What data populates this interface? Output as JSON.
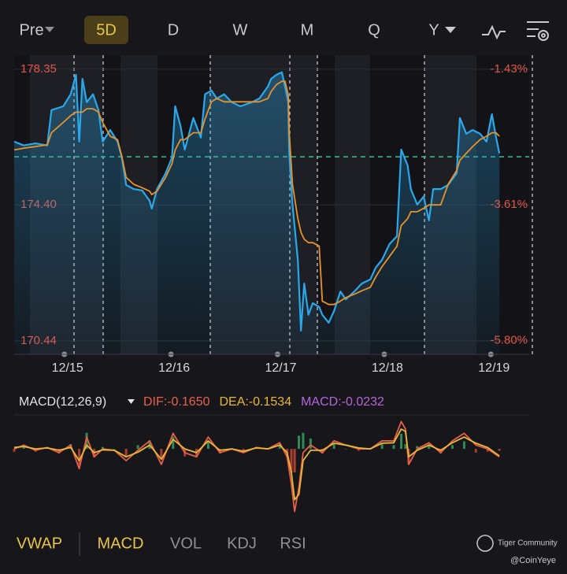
{
  "toolbar": {
    "tabs": [
      "Pre",
      "5D",
      "D",
      "W",
      "M",
      "Q",
      "Y"
    ]
  },
  "indicator_tabs": [
    "VWAP",
    "MACD",
    "VOL",
    "KDJ",
    "RSI"
  ],
  "watermark": {
    "brand": "Tiger Community",
    "handle": "@CoinYeye"
  },
  "chart_data": [
    {
      "type": "line",
      "area": true,
      "xlim": [
        0,
        4.83
      ],
      "xticks": [
        {
          "value": 0.5,
          "label": "12/15"
        },
        {
          "value": 1.5,
          "label": "12/16"
        },
        {
          "value": 2.5,
          "label": "12/17"
        },
        {
          "value": 3.5,
          "label": "12/18"
        },
        {
          "value": 4.5,
          "label": "12/19"
        }
      ],
      "ylim": [
        170.05,
        178.76
      ],
      "yticks": [
        178.35,
        {
          "value": 174.4,
          "label": "174.40"
        },
        170.44
      ],
      "y2lim": [
        -6.02,
        -1.2
      ],
      "y2ticks": [
        {
          "value": -1.43,
          "label": "-1.43%"
        },
        {
          "value": -3.61,
          "label": "-3.61%"
        },
        {
          "value": -5.8,
          "label": "-5.80%"
        }
      ],
      "reference_line": 175.8,
      "x": [
        0,
        0.09,
        0.2,
        0.31,
        0.35,
        0.46,
        0.53,
        0.58,
        0.61,
        0.64,
        0.68,
        0.74,
        0.79,
        0.83,
        0.9,
        0.97,
        1.01,
        1.05,
        1.12,
        1.2,
        1.27,
        1.29,
        1.34,
        1.42,
        1.48,
        1.51,
        1.56,
        1.6,
        1.68,
        1.75,
        1.79,
        1.85,
        1.9,
        1.97,
        2.04,
        2.12,
        2.23,
        2.3,
        2.38,
        2.41,
        2.46,
        2.51,
        2.54,
        2.57,
        2.58,
        2.61,
        2.66,
        2.69,
        2.72,
        2.76,
        2.8,
        2.86,
        2.89,
        2.95,
        3.0,
        3.06,
        3.11,
        3.19,
        3.26,
        3.34,
        3.39,
        3.45,
        3.52,
        3.59,
        3.63,
        3.69,
        3.72,
        3.78,
        3.84,
        3.89,
        3.93,
        4.0,
        4.07,
        4.15,
        4.18,
        4.24,
        4.3,
        4.37,
        4.43,
        4.48,
        4.52,
        4.55
      ],
      "series": [
        {
          "color": "#2aa8ea",
          "values": [
            176.24,
            176.13,
            176.19,
            176.13,
            177.16,
            177.27,
            177.62,
            178.19,
            176.24,
            178.07,
            177.39,
            177.62,
            177.16,
            176.24,
            176.58,
            176.24,
            175.78,
            174.98,
            174.86,
            174.82,
            174.52,
            174.29,
            174.86,
            175.32,
            175.78,
            177.27,
            176.7,
            176.01,
            176.93,
            176.36,
            177.62,
            177.73,
            177.5,
            177.62,
            177.39,
            177.27,
            177.39,
            177.5,
            177.85,
            178.07,
            178.19,
            178.26,
            177.85,
            177.39,
            175.9,
            174.41,
            172.8,
            170.74,
            172.11,
            171.2,
            171.54,
            171.43,
            171.2,
            170.97,
            171.31,
            171.88,
            171.65,
            171.88,
            172.11,
            172.23,
            172.57,
            172.8,
            173.26,
            173.49,
            176.01,
            175.55,
            174.86,
            174.41,
            174.64,
            173.95,
            174.86,
            174.86,
            174.98,
            175.32,
            176.93,
            176.47,
            176.58,
            176.47,
            176.24,
            177.04,
            176.36,
            175.9
          ]
        },
        {
          "color": "#e8922a",
          "values": [
            176.0,
            176.05,
            176.1,
            176.15,
            176.5,
            176.8,
            177.0,
            177.1,
            177.1,
            177.1,
            177.2,
            177.2,
            177.1,
            176.8,
            176.4,
            176.3,
            175.8,
            175.2,
            175.0,
            174.9,
            174.8,
            174.7,
            174.8,
            175.2,
            175.6,
            176.0,
            176.3,
            176.3,
            176.5,
            176.5,
            176.9,
            177.4,
            177.5,
            177.4,
            177.4,
            177.4,
            177.4,
            177.4,
            177.5,
            177.7,
            177.9,
            178.0,
            178.0,
            177.6,
            176.5,
            175.0,
            174.0,
            173.6,
            173.4,
            173.3,
            173.3,
            173.2,
            171.6,
            171.5,
            171.5,
            171.6,
            171.7,
            171.8,
            171.9,
            172.0,
            172.3,
            172.6,
            172.9,
            173.2,
            173.8,
            174.0,
            174.2,
            174.2,
            174.3,
            174.4,
            174.4,
            174.4,
            175.0,
            175.4,
            175.7,
            175.9,
            176.1,
            176.3,
            176.4,
            176.5,
            176.5,
            176.4
          ]
        }
      ]
    },
    {
      "type": "line",
      "title": "MACD(12,26,9)",
      "xlim": [
        0,
        4.83
      ],
      "ylim": [
        -1.42,
        0.72
      ],
      "x": [
        0,
        0.09,
        0.2,
        0.31,
        0.42,
        0.53,
        0.61,
        0.68,
        0.75,
        0.83,
        0.94,
        1.05,
        1.16,
        1.27,
        1.38,
        1.49,
        1.6,
        1.71,
        1.82,
        1.93,
        2.04,
        2.15,
        2.27,
        2.38,
        2.49,
        2.56,
        2.6,
        2.63,
        2.67,
        2.71,
        2.78,
        2.89,
        3.0,
        3.11,
        3.23,
        3.34,
        3.45,
        3.56,
        3.63,
        3.67,
        3.7,
        3.78,
        3.89,
        4.0,
        4.11,
        4.22,
        4.33,
        4.44,
        4.55
      ],
      "series": [
        {
          "type": "bar",
          "label": "MACD:-0.0232",
          "color": "#b565d8",
          "color_up": "#2f8a55",
          "color_down": "#a8402f",
          "values": [
            -0.06,
            0.06,
            -0.06,
            0.02,
            -0.1,
            0.1,
            -0.34,
            0.34,
            -0.18,
            0.04,
            0,
            -0.16,
            0.08,
            0.18,
            -0.22,
            0.26,
            -0.16,
            -0.18,
            0.16,
            -0.1,
            0,
            -0.06,
            0.02,
            0,
            0.1,
            -0.18,
            -0.5,
            -0.5,
            0.28,
            0.34,
            0.22,
            -0.1,
            0.1,
            0,
            -0.04,
            0,
            0.1,
            0.08,
            0.32,
            0.1,
            -0.32,
            0.06,
            0.1,
            -0.1,
            0.08,
            0.16,
            -0.08,
            -0.06,
            -0.04
          ]
        },
        {
          "label": "DIF:-0.1650",
          "color": "#e8604a",
          "values": [
            0,
            0.08,
            -0.03,
            0.03,
            -0.08,
            0.08,
            -0.42,
            0.25,
            -0.17,
            0,
            -0.03,
            -0.25,
            -0.03,
            0.17,
            -0.33,
            0.33,
            -0.08,
            -0.17,
            0.25,
            -0.08,
            0,
            -0.08,
            0.03,
            0,
            0.13,
            -0.17,
            -0.75,
            -1.33,
            -0.83,
            -0.08,
            0.08,
            -0.08,
            0.17,
            0.08,
            0,
            0,
            0.17,
            0.17,
            0.58,
            0.42,
            -0.33,
            0,
            0.13,
            -0.08,
            0.17,
            0.33,
            0.08,
            0,
            -0.17
          ]
        },
        {
          "label": "DEA:-0.1534",
          "color": "#e8b83a",
          "values": [
            0.03,
            0.05,
            0,
            0.02,
            -0.03,
            0.03,
            -0.25,
            0.08,
            -0.08,
            -0.02,
            -0.03,
            -0.17,
            -0.07,
            0.08,
            -0.22,
            0.2,
            0,
            -0.08,
            0.17,
            -0.03,
            0,
            -0.05,
            0.02,
            0,
            0.08,
            -0.08,
            -0.5,
            -1.08,
            -0.97,
            -0.25,
            -0.03,
            -0.03,
            0.12,
            0.08,
            0.02,
            0,
            0.12,
            0.13,
            0.42,
            0.37,
            -0.17,
            -0.03,
            0.08,
            -0.03,
            0.13,
            0.25,
            0.12,
            0.03,
            -0.15
          ]
        }
      ]
    }
  ]
}
